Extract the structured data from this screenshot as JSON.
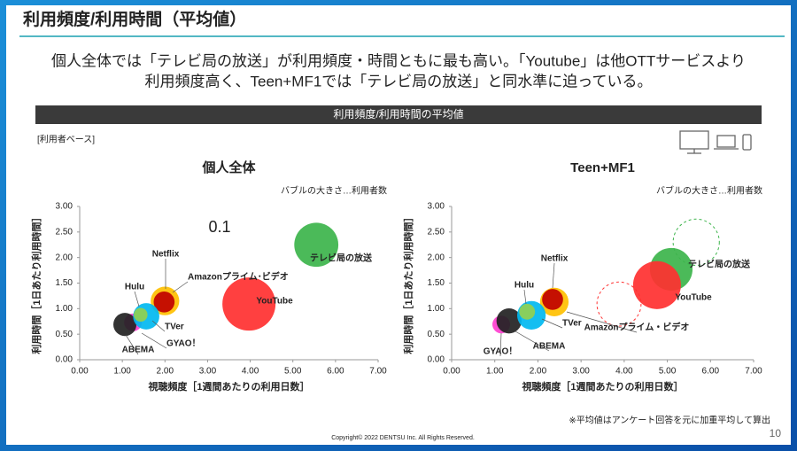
{
  "slide": {
    "title": "利用頻度/利用時間（平均値）",
    "subtitle": [
      "個人全体では「テレビ局の放送」が利用頻度・時間ともに最も高い。「Youtube」は他OTTサービスより",
      "利用頻度高く、Teen+MF1では「テレビ局の放送」と同水準に迫っている。"
    ],
    "banner": "利用頻度/利用時間の平均値",
    "base": "[利用者ベース]",
    "footnote": "※平均値はアンケート回答を元に加重平均して算出",
    "copyright": "Copyright© 2022 DENTSU Inc. All Rights Reserved.",
    "page": "10"
  },
  "chart_data": [
    {
      "type": "bubble",
      "title": "個人全体",
      "note": "バブルの大きさ…利用者数",
      "annotation": "0.1",
      "x_label": "視聴頻度［1週間あたりの利用日数］",
      "y_label": "利用時間［1日あたり利用時間］",
      "xlim": [
        0,
        7
      ],
      "ylim": [
        0,
        3
      ],
      "xticks": [
        {
          "value": 0,
          "label": "0.00"
        },
        {
          "value": 1,
          "label": "1.00"
        },
        {
          "value": 2,
          "label": "2.00"
        },
        {
          "value": 3,
          "label": "3.00"
        },
        {
          "value": 4,
          "label": "4.00"
        },
        {
          "value": 5,
          "label": "5.00"
        },
        {
          "value": 6,
          "label": "6.00"
        },
        {
          "value": 7,
          "label": "7.00"
        }
      ],
      "yticks": [
        {
          "value": 0,
          "label": "0.00"
        },
        {
          "value": 0.5,
          "label": "0.50"
        },
        {
          "value": 1,
          "label": "1.00"
        },
        {
          "value": 1.5,
          "label": "1.50"
        },
        {
          "value": 2,
          "label": "2.00"
        },
        {
          "value": 2.5,
          "label": "2.50"
        },
        {
          "value": 3,
          "label": "3.00"
        }
      ],
      "series": [
        {
          "name": "テレビ局の放送",
          "color": "#3cb44b",
          "x": [
            5.55
          ],
          "values": [
            2.25
          ],
          "sizes": [
            62
          ]
        },
        {
          "name": "YouTube",
          "color": "#ff3030",
          "x": [
            3.97
          ],
          "values": [
            1.09
          ],
          "sizes": [
            90
          ]
        },
        {
          "name": "Amazonプライム･ビデオ",
          "color": "#ffc000",
          "x": [
            2.0
          ],
          "values": [
            1.15
          ],
          "sizes": [
            26
          ]
        },
        {
          "name": "Netflix",
          "color": "#c00000",
          "x": [
            1.98
          ],
          "values": [
            1.13
          ],
          "sizes": [
            14
          ]
        },
        {
          "name": "GYAO！",
          "color": "#ff40d0",
          "x": [
            1.25
          ],
          "values": [
            0.73
          ],
          "sizes": [
            10
          ]
        },
        {
          "name": "ABEMA",
          "color": "#222222",
          "x": [
            1.06
          ],
          "values": [
            0.69
          ],
          "sizes": [
            17
          ]
        },
        {
          "name": "TVer",
          "color": "#00b8f0",
          "x": [
            1.56
          ],
          "values": [
            0.85
          ],
          "sizes": [
            22
          ]
        },
        {
          "name": "Hulu",
          "color": "#92d050",
          "x": [
            1.43
          ],
          "values": [
            0.88
          ],
          "sizes": [
            6
          ]
        }
      ]
    },
    {
      "type": "bubble",
      "title": "Teen+MF1",
      "note": "バブルの大きさ…利用者数",
      "x_label": "視聴頻度［1週間あたりの利用日数］",
      "y_label": "利用時間［1日あたり利用時間］",
      "xlim": [
        0,
        7
      ],
      "ylim": [
        0,
        3
      ],
      "xticks": [
        {
          "value": 0,
          "label": "0.00"
        },
        {
          "value": 1,
          "label": "1.00"
        },
        {
          "value": 2,
          "label": "2.00"
        },
        {
          "value": 3,
          "label": "3.00"
        },
        {
          "value": 4,
          "label": "4.00"
        },
        {
          "value": 5,
          "label": "5.00"
        },
        {
          "value": 6,
          "label": "6.00"
        },
        {
          "value": 7,
          "label": "7.00"
        }
      ],
      "yticks": [
        {
          "value": 0,
          "label": "0.00"
        },
        {
          "value": 0.5,
          "label": "0.50"
        },
        {
          "value": 1,
          "label": "1.00"
        },
        {
          "value": 1.5,
          "label": "1.50"
        },
        {
          "value": 2,
          "label": "2.00"
        },
        {
          "value": 2.5,
          "label": "2.50"
        },
        {
          "value": 3,
          "label": "3.00"
        }
      ],
      "series": [
        {
          "color": "#3cb44b",
          "dashed": true,
          "x": [
            5.67
          ],
          "values": [
            2.3
          ],
          "sizes": [
            68
          ]
        },
        {
          "color": "#ff3030",
          "dashed": true,
          "x": [
            3.88
          ],
          "values": [
            1.09
          ],
          "sizes": [
            62
          ]
        },
        {
          "name": "テレビ局の放送",
          "color": "#3cb44b",
          "x": [
            5.09
          ],
          "values": [
            1.77
          ],
          "sizes": [
            58
          ]
        },
        {
          "name": "YouTube",
          "color": "#ff3030",
          "x": [
            4.76
          ],
          "values": [
            1.46
          ],
          "sizes": [
            73
          ]
        },
        {
          "name": "Amazonプライム・ビデオ",
          "color": "#ffc000",
          "x": [
            2.38
          ],
          "values": [
            1.13
          ],
          "sizes": [
            26
          ]
        },
        {
          "name": "Netflix",
          "color": "#c00000",
          "x": [
            2.34
          ],
          "values": [
            1.18
          ],
          "sizes": [
            14
          ]
        },
        {
          "name": "GYAO！",
          "color": "#ff40d0",
          "x": [
            1.15
          ],
          "values": [
            0.69
          ],
          "sizes": [
            10
          ]
        },
        {
          "name": "ABEMA",
          "color": "#222222",
          "x": [
            1.33
          ],
          "values": [
            0.76
          ],
          "sizes": [
            20
          ]
        },
        {
          "name": "TVer",
          "color": "#00b8f0",
          "x": [
            1.85
          ],
          "values": [
            0.87
          ],
          "sizes": [
            26
          ]
        },
        {
          "name": "Hulu",
          "color": "#92d050",
          "x": [
            1.75
          ],
          "values": [
            0.94
          ],
          "sizes": [
            8
          ]
        }
      ]
    }
  ]
}
